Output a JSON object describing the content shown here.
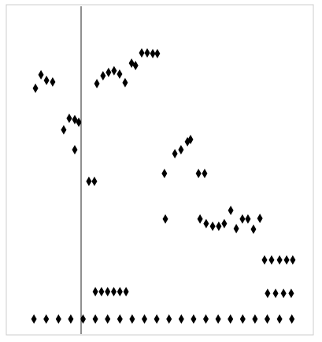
{
  "chart_data": {
    "type": "scatter",
    "color": "#000000",
    "x": [
      9.5,
      11.3,
      13.1,
      15.1,
      18.7,
      20.5,
      22.3,
      23.6,
      22.3,
      26.9,
      28.7,
      29.5,
      31.5,
      33.3,
      35.1,
      36.9,
      38.7,
      40.8,
      42.1,
      44.1,
      45.9,
      47.7,
      49.2,
      51.5,
      51.8,
      54.9,
      56.9,
      59.0,
      60.0,
      62.6,
      64.6,
      63.1,
      65.1,
      67.2,
      69.2,
      71.0,
      73.1,
      74.9,
      76.9,
      78.7,
      80.5,
      82.6,
      84.1,
      86.4,
      89.0,
      91.3,
      93.3,
      85.1,
      87.7,
      90.3,
      92.8,
      29,
      31,
      33,
      35,
      37,
      39,
      9,
      13,
      17,
      21,
      25,
      29,
      33,
      37,
      41,
      45,
      49,
      53,
      57,
      61,
      65,
      69,
      73,
      77,
      81,
      85,
      89,
      93
    ],
    "y": [
      74.7,
      78.8,
      77.1,
      76.6,
      62.1,
      65.6,
      65.2,
      64.4,
      56.1,
      46.5,
      46.5,
      76.1,
      78.5,
      79.5,
      80.0,
      79.0,
      76.4,
      82.3,
      81.6,
      85.4,
      85.4,
      85.2,
      85.2,
      48.9,
      35.1,
      54.9,
      56.1,
      58.5,
      59.2,
      48.9,
      48.9,
      35.1,
      33.7,
      32.9,
      32.9,
      33.7,
      37.7,
      32.2,
      35.1,
      35.1,
      32.0,
      35.3,
      22.7,
      22.7,
      22.7,
      22.7,
      22.7,
      12.6,
      12.6,
      12.6,
      12.6,
      13.1,
      13.1,
      13.1,
      13.1,
      13.1,
      13.1,
      4.8,
      4.8,
      4.8,
      4.8,
      4.8,
      4.8,
      4.8,
      4.8,
      4.8,
      4.8,
      4.8,
      4.8,
      4.8,
      4.8,
      4.8,
      4.8,
      4.8,
      4.8,
      4.8,
      4.8,
      4.8,
      4.8
    ],
    "xlim": [
      0,
      100
    ],
    "ylim": [
      0,
      100
    ]
  }
}
